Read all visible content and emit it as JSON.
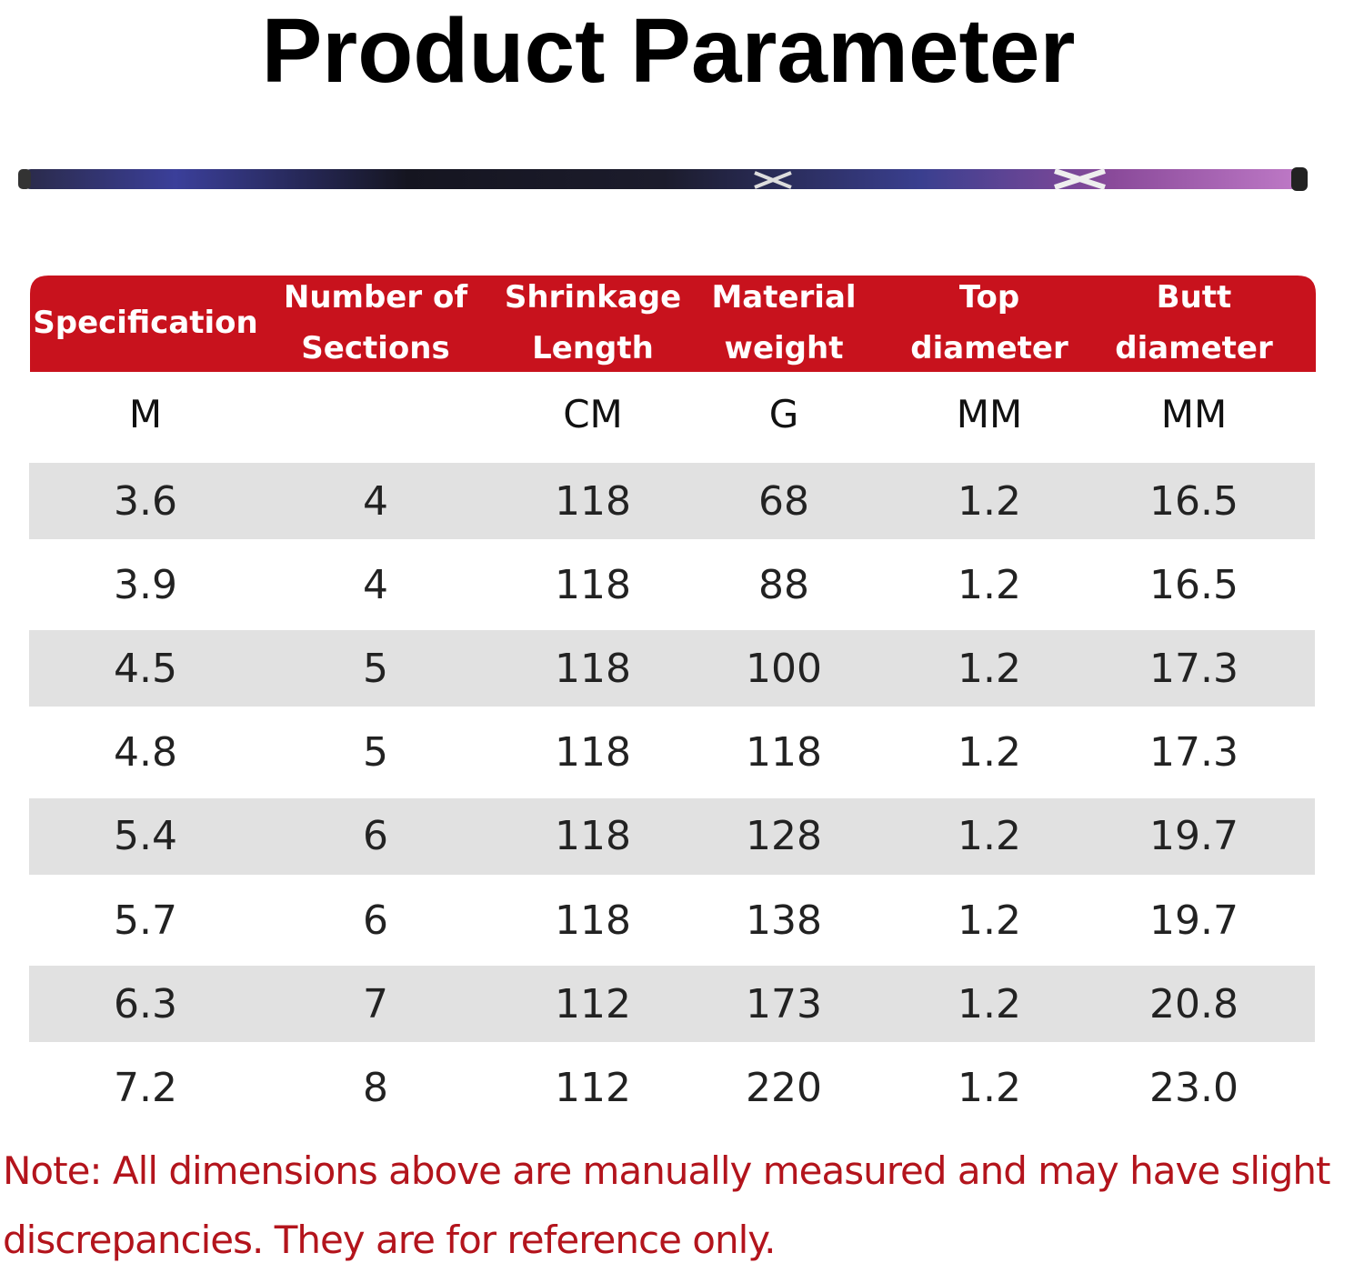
{
  "title": "Product Parameter",
  "table": {
    "headers": [
      "Specification",
      "Number of Sections",
      "Shrinkage Length",
      "Material weight",
      "Top diameter",
      "Butt diameter"
    ],
    "units": [
      "M",
      null,
      "CM",
      "G",
      "MM",
      "MM"
    ],
    "rows": [
      [
        "3.6",
        "4",
        "118",
        "68",
        "1.2",
        "16.5"
      ],
      [
        "3.9",
        "4",
        "118",
        "88",
        "1.2",
        "16.5"
      ],
      [
        "4.5",
        "5",
        "118",
        "100",
        "1.2",
        "17.3"
      ],
      [
        "4.8",
        "5",
        "118",
        "118",
        "1.2",
        "17.3"
      ],
      [
        "5.4",
        "6",
        "118",
        "128",
        "1.2",
        "19.7"
      ],
      [
        "5.7",
        "6",
        "118",
        "138",
        "1.2",
        "19.7"
      ],
      [
        "6.3",
        "7",
        "112",
        "173",
        "1.2",
        "20.8"
      ],
      [
        "7.2",
        "8",
        "112",
        "220",
        "1.2",
        "23.0"
      ]
    ]
  },
  "note": "Note: All dimensions above are manually measured and may have slight discrepancies. They are for reference only."
}
